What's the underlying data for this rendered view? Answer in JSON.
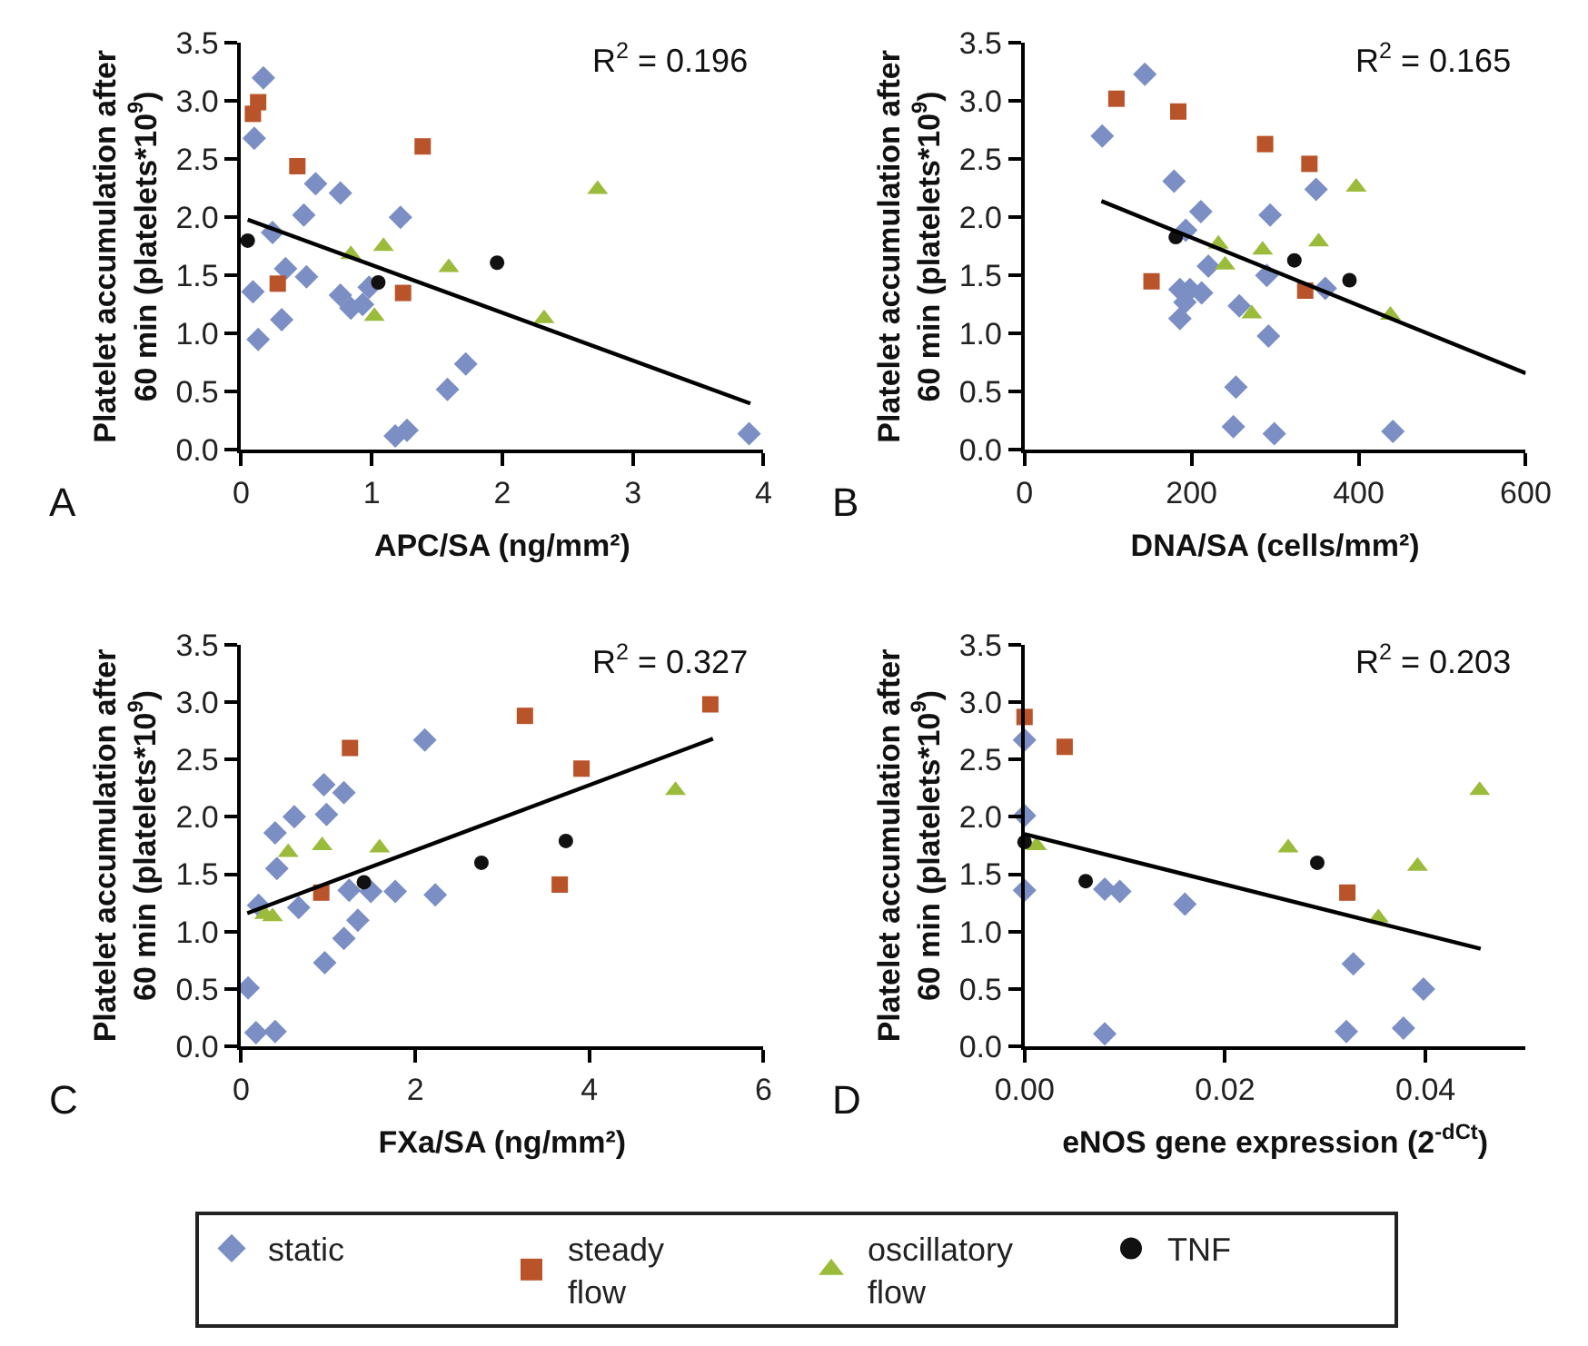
{
  "chart_data": [
    {
      "type": "scatter",
      "xlabel": "APC/SA (ng/mm²)",
      "ylabel": "Platelet accumulation after\n60 min (platelets*10$^{9}$)",
      "annotations": [
        "R$^{2}$ = 0.196",
        "A"
      ],
      "xlim": [
        0,
        4
      ],
      "xticks": [
        0,
        1,
        2,
        3,
        4
      ],
      "ylim": [
        0,
        3.5
      ],
      "yticks": [
        {
          "value": 0,
          "label": "0.0"
        },
        {
          "value": 0.5,
          "label": "0.5"
        },
        {
          "value": 1,
          "label": "1.0"
        },
        {
          "value": 1.5,
          "label": "1.5"
        },
        {
          "value": 2,
          "label": "2.0"
        },
        {
          "value": 2.5,
          "label": "2.5"
        },
        {
          "value": 3,
          "label": "3.0"
        },
        {
          "value": 3.5,
          "label": "3.5"
        }
      ],
      "grid": false,
      "legend": "bottom",
      "series": [
        {
          "name": "static",
          "color": "#7b8fc4",
          "marker": "diamond",
          "x": [
            0.17,
            0.1,
            0.57,
            0.76,
            0.48,
            1.22,
            0.24,
            0.34,
            0.5,
            0.09,
            0.76,
            0.98,
            0.93,
            0.84,
            0.31,
            0.13,
            1.72,
            1.58,
            1.18,
            1.27,
            3.89
          ],
          "values": [
            3.2,
            2.68,
            2.29,
            2.21,
            2.02,
            2.0,
            1.87,
            1.56,
            1.49,
            1.36,
            1.33,
            1.4,
            1.25,
            1.22,
            1.12,
            0.95,
            0.74,
            0.52,
            0.12,
            0.17,
            0.14
          ]
        },
        {
          "name": "steady\nflow",
          "color": "#b9532a",
          "marker": "square",
          "x": [
            0.09,
            0.13,
            0.43,
            1.39,
            0.28,
            1.24
          ],
          "values": [
            2.89,
            2.99,
            2.44,
            2.61,
            1.43,
            1.35
          ]
        },
        {
          "name": "oscillatory\nflow",
          "color": "#9bbb3b",
          "marker": "triangle",
          "x": [
            2.73,
            1.09,
            0.84,
            1.59,
            1.02,
            2.32
          ],
          "values": [
            2.24,
            1.75,
            1.68,
            1.57,
            1.15,
            1.13
          ]
        },
        {
          "name": "TNF",
          "color": "#111111",
          "marker": "circle",
          "x": [
            0.05,
            1.05,
            1.96
          ],
          "values": [
            1.8,
            1.44,
            1.61
          ]
        },
        {
          "type": "line",
          "color": "#000000",
          "marker": "none",
          "line_style": "solid",
          "x": [
            0.05,
            3.9
          ],
          "values": [
            1.98,
            0.4
          ]
        }
      ]
    },
    {
      "type": "scatter",
      "xlabel": "DNA/SA (cells/mm²)",
      "ylabel": "Platelet accumulation after\n60 min (platelets*10$^{9}$)",
      "annotations": [
        "R$^{2}$ = 0.165",
        "B"
      ],
      "xlim": [
        0,
        600
      ],
      "xticks": [
        0,
        200,
        400,
        600
      ],
      "ylim": [
        0,
        3.5
      ],
      "yticks": [
        {
          "value": 0,
          "label": "0.0"
        },
        {
          "value": 0.5,
          "label": "0.5"
        },
        {
          "value": 1,
          "label": "1.0"
        },
        {
          "value": 1.5,
          "label": "1.5"
        },
        {
          "value": 2,
          "label": "2.0"
        },
        {
          "value": 2.5,
          "label": "2.5"
        },
        {
          "value": 3,
          "label": "3.0"
        },
        {
          "value": 3.5,
          "label": "3.5"
        }
      ],
      "grid": false,
      "legend": "bottom",
      "series": [
        {
          "name": "static",
          "color": "#7b8fc4",
          "marker": "diamond",
          "x": [
            144,
            93,
            179,
            211,
            294,
            349,
            193,
            220,
            290,
            186,
            198,
            212,
            192,
            186,
            257,
            360,
            292,
            253,
            250,
            299,
            441
          ],
          "values": [
            3.23,
            2.7,
            2.31,
            2.05,
            2.02,
            2.24,
            1.89,
            1.58,
            1.5,
            1.38,
            1.38,
            1.35,
            1.27,
            1.13,
            1.24,
            1.39,
            0.98,
            0.54,
            0.2,
            0.14,
            0.16
          ]
        },
        {
          "name": "steady\nflow",
          "color": "#b9532a",
          "marker": "square",
          "x": [
            110,
            184,
            288,
            341,
            152,
            336
          ],
          "values": [
            3.02,
            2.91,
            2.63,
            2.46,
            1.45,
            1.37
          ]
        },
        {
          "name": "oscillatory\nflow",
          "color": "#9bbb3b",
          "marker": "triangle",
          "x": [
            397,
            232,
            285,
            352,
            240,
            272,
            438
          ],
          "values": [
            2.26,
            1.77,
            1.72,
            1.79,
            1.59,
            1.17,
            1.16
          ]
        },
        {
          "name": "TNF",
          "color": "#111111",
          "marker": "circle",
          "x": [
            181,
            323,
            389
          ],
          "values": [
            1.83,
            1.63,
            1.46
          ]
        },
        {
          "type": "line",
          "color": "#000000",
          "marker": "none",
          "line_style": "solid",
          "x": [
            92,
            600
          ],
          "values": [
            2.14,
            0.66
          ]
        }
      ]
    },
    {
      "type": "scatter",
      "xlabel": "FXa/SA (ng/mm²)",
      "ylabel": "Platelet accumulation after\n60 min (platelets*10$^{9}$)",
      "annotations": [
        "R$^{2}$ = 0.327",
        "C"
      ],
      "xlim": [
        0,
        6
      ],
      "xticks": [
        0,
        2,
        4,
        6
      ],
      "ylim": [
        0,
        3.5
      ],
      "yticks": [
        {
          "value": 0,
          "label": "0.0"
        },
        {
          "value": 0.5,
          "label": "0.5"
        },
        {
          "value": 1,
          "label": "1.0"
        },
        {
          "value": 1.5,
          "label": "1.5"
        },
        {
          "value": 2,
          "label": "2.0"
        },
        {
          "value": 2.5,
          "label": "2.5"
        },
        {
          "value": 3,
          "label": "3.0"
        },
        {
          "value": 3.5,
          "label": "3.5"
        }
      ],
      "grid": false,
      "legend": "bottom",
      "series": [
        {
          "name": "static",
          "color": "#7b8fc4",
          "marker": "diamond",
          "x": [
            2.11,
            0.95,
            1.18,
            0.98,
            0.61,
            0.39,
            0.41,
            0.2,
            0.66,
            1.24,
            1.49,
            1.77,
            2.23,
            1.34,
            1.18,
            0.96,
            0.08,
            0.17,
            0.39
          ],
          "values": [
            2.67,
            2.28,
            2.21,
            2.02,
            2.0,
            1.86,
            1.55,
            1.23,
            1.21,
            1.36,
            1.35,
            1.35,
            1.32,
            1.1,
            0.94,
            0.73,
            0.51,
            0.12,
            0.13
          ]
        },
        {
          "name": "steady\nflow",
          "color": "#b9532a",
          "marker": "square",
          "x": [
            1.25,
            3.26,
            5.39,
            3.91,
            3.66,
            0.92
          ],
          "values": [
            2.6,
            2.88,
            2.98,
            2.42,
            1.41,
            1.34
          ]
        },
        {
          "name": "oscillatory\nflow",
          "color": "#9bbb3b",
          "marker": "triangle",
          "x": [
            4.99,
            0.93,
            1.59,
            0.54,
            0.27,
            0.36
          ],
          "values": [
            2.23,
            1.75,
            1.73,
            1.69,
            1.15,
            1.13
          ]
        },
        {
          "name": "TNF",
          "color": "#111111",
          "marker": "circle",
          "x": [
            1.41,
            2.76,
            3.73
          ],
          "values": [
            1.43,
            1.6,
            1.79
          ]
        },
        {
          "type": "line",
          "color": "#000000",
          "marker": "none",
          "line_style": "solid",
          "x": [
            0.07,
            5.42
          ],
          "values": [
            1.16,
            2.68
          ]
        }
      ]
    },
    {
      "type": "scatter",
      "xlabel": "eNOS gene expression (2$^{-dCt}$)",
      "ylabel": "Platelet accumulation after\n60 min (platelets*10$^{9}$)",
      "annotations": [
        "R$^{2}$ = 0.203",
        "D"
      ],
      "xlim": [
        0,
        0.05
      ],
      "xticks": [
        {
          "value": 0,
          "label": "0.00"
        },
        {
          "value": 0.02,
          "label": "0.02"
        },
        {
          "value": 0.04,
          "label": "0.04"
        }
      ],
      "ylim": [
        0,
        3.5
      ],
      "yticks": [
        {
          "value": 0,
          "label": "0.0"
        },
        {
          "value": 0.5,
          "label": "0.5"
        },
        {
          "value": 1,
          "label": "1.0"
        },
        {
          "value": 1.5,
          "label": "1.5"
        },
        {
          "value": 2,
          "label": "2.0"
        },
        {
          "value": 2.5,
          "label": "2.5"
        },
        {
          "value": 3,
          "label": "3.0"
        },
        {
          "value": 3.5,
          "label": "3.5"
        }
      ],
      "grid": false,
      "legend": "bottom",
      "series": [
        {
          "name": "static",
          "color": "#7b8fc4",
          "marker": "diamond",
          "x": [
            0,
            0,
            0,
            0.008,
            0.0095,
            0.016,
            0.008,
            0.0328,
            0.0398,
            0.0321,
            0.0378
          ],
          "values": [
            2.67,
            2.01,
            1.36,
            1.37,
            1.35,
            1.24,
            0.11,
            0.72,
            0.5,
            0.13,
            0.16
          ]
        },
        {
          "name": "steady\nflow",
          "color": "#b9532a",
          "marker": "square",
          "x": [
            0,
            0.004,
            0.0322
          ],
          "values": [
            2.87,
            2.61,
            1.34
          ]
        },
        {
          "name": "oscillatory\nflow",
          "color": "#9bbb3b",
          "marker": "triangle",
          "x": [
            0.0454,
            0.0012,
            0.0263,
            0.0392,
            0.0353
          ],
          "values": [
            2.23,
            1.75,
            1.73,
            1.57,
            1.12
          ]
        },
        {
          "name": "TNF",
          "color": "#111111",
          "marker": "circle",
          "x": [
            0,
            0.0061,
            0.0292
          ],
          "values": [
            1.78,
            1.44,
            1.6
          ]
        },
        {
          "type": "line",
          "color": "#000000",
          "marker": "none",
          "line_style": "solid",
          "x": [
            0,
            0.0455
          ],
          "values": [
            1.85,
            0.85
          ]
        }
      ]
    }
  ]
}
